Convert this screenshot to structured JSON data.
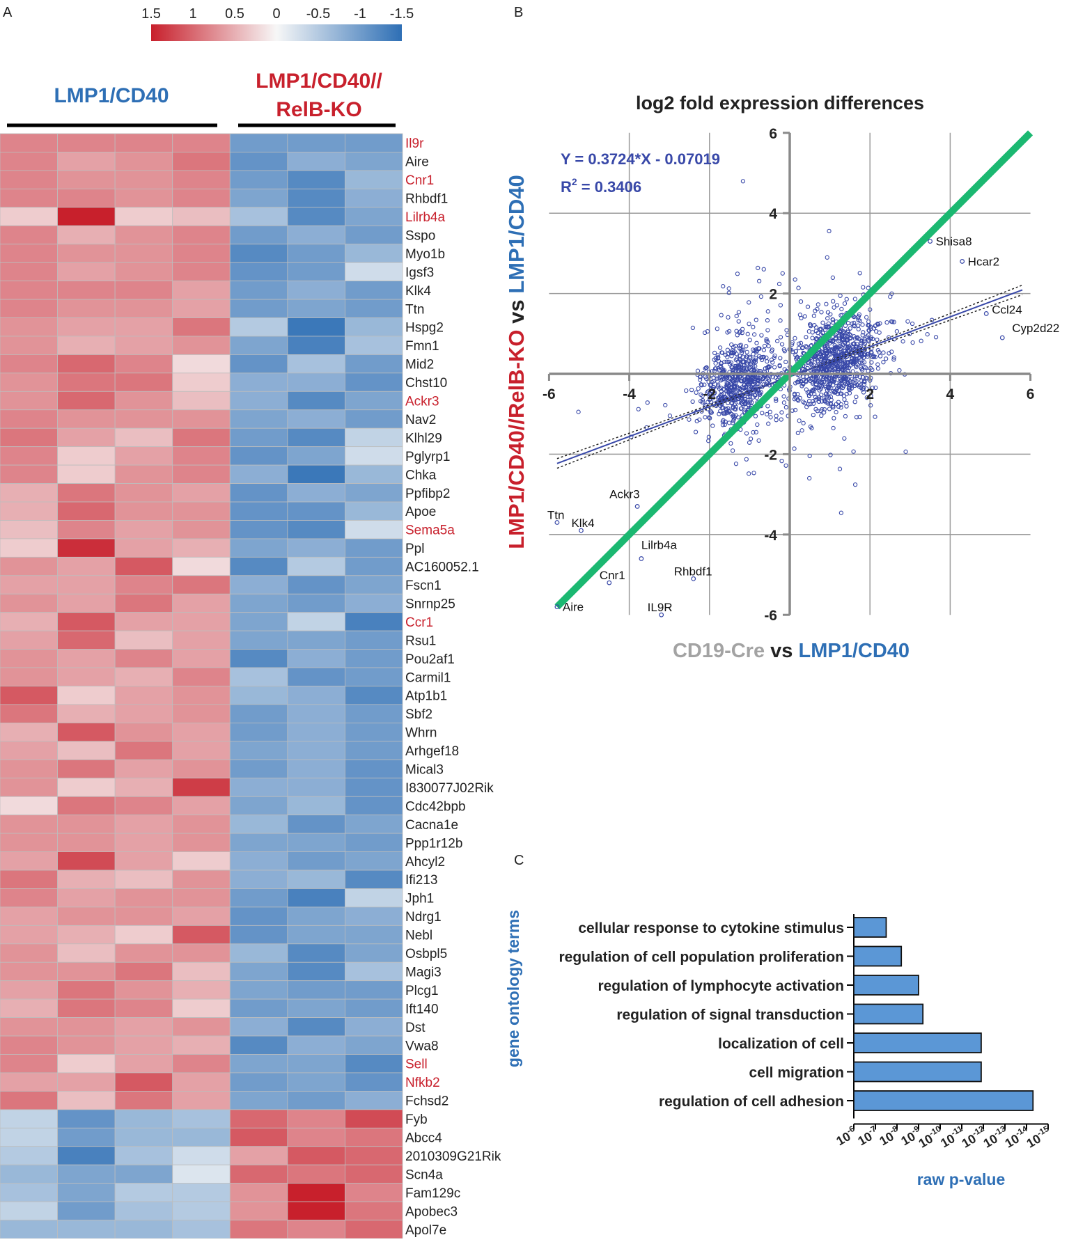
{
  "panel_labels": {
    "a": "A",
    "b": "B",
    "c": "C"
  },
  "colors": {
    "red": "#c8202c",
    "blue": "#2e6fb5",
    "green": "#1bb871",
    "navy": "#3848a8",
    "gray": "#a3a3a3",
    "bar_fill": "#5b97d6"
  },
  "icons": {
    "scatter_point": "open-circle",
    "heatmap_cell": "filled-rect"
  },
  "chart_data": [
    {
      "type": "heatmap",
      "title": "",
      "color_scale": {
        "stops": [
          1.5,
          1,
          0.5,
          0,
          -0.5,
          -1,
          -1.5
        ],
        "labels": [
          "1.5",
          "1",
          "0.5",
          "0",
          "-0.5",
          "-1",
          "-1.5"
        ],
        "high_color": "#c8202c",
        "mid_color": "#f7f7f7",
        "low_color": "#2e6fb5"
      },
      "groups": [
        {
          "label": "LMP1/CD40",
          "color": "#2e6fb5",
          "n_columns": 4
        },
        {
          "label_line1": "LMP1/CD40//",
          "label_line2": "RelB-KO",
          "color": "#c8202c",
          "n_columns": 3
        }
      ],
      "highlighted_genes": [
        "Il9r",
        "Cnr1",
        "Lilrb4a",
        "Ackr3",
        "Sema5a",
        "Ccr1",
        "Sell",
        "Nfkb2"
      ],
      "rows": [
        {
          "gene": "Il9r",
          "values": [
            0.8,
            0.8,
            0.8,
            0.8,
            -1.0,
            -1.0,
            -1.0
          ]
        },
        {
          "gene": "Aire",
          "values": [
            0.8,
            0.6,
            0.7,
            0.9,
            -1.1,
            -0.8,
            -0.9
          ]
        },
        {
          "gene": "Cnr1",
          "values": [
            0.8,
            0.7,
            0.7,
            0.8,
            -1.0,
            -1.2,
            -0.7
          ]
        },
        {
          "gene": "Rhbdf1",
          "values": [
            0.8,
            0.8,
            0.7,
            0.8,
            -0.9,
            -1.2,
            -0.8
          ]
        },
        {
          "gene": "Lilrb4a",
          "values": [
            0.3,
            1.5,
            0.3,
            0.4,
            -0.6,
            -1.2,
            -0.9
          ]
        },
        {
          "gene": "Sspo",
          "values": [
            0.8,
            0.5,
            0.7,
            0.8,
            -1.0,
            -0.8,
            -1.0
          ]
        },
        {
          "gene": "Myo1b",
          "values": [
            0.8,
            0.7,
            0.7,
            0.8,
            -1.2,
            -1.0,
            -0.7
          ]
        },
        {
          "gene": "Igsf3",
          "values": [
            0.8,
            0.6,
            0.7,
            0.8,
            -1.1,
            -1.0,
            -0.3
          ]
        },
        {
          "gene": "Klk4",
          "values": [
            0.8,
            0.8,
            0.8,
            0.6,
            -1.0,
            -0.8,
            -1.0
          ]
        },
        {
          "gene": "Ttn",
          "values": [
            0.8,
            0.7,
            0.7,
            0.6,
            -1.0,
            -0.9,
            -1.0
          ]
        },
        {
          "gene": "Hspg2",
          "values": [
            0.7,
            0.6,
            0.6,
            0.9,
            -0.5,
            -1.4,
            -0.7
          ]
        },
        {
          "gene": "Fmn1",
          "values": [
            0.7,
            0.5,
            0.6,
            0.7,
            -0.9,
            -1.3,
            -0.6
          ]
        },
        {
          "gene": "Mid2",
          "values": [
            0.8,
            1.0,
            0.8,
            0.2,
            -1.1,
            -0.6,
            -1.0
          ]
        },
        {
          "gene": "Chst10",
          "values": [
            0.7,
            0.9,
            0.9,
            0.3,
            -0.8,
            -0.8,
            -1.1
          ]
        },
        {
          "gene": "Ackr3",
          "values": [
            0.7,
            1.0,
            0.7,
            0.4,
            -0.8,
            -1.2,
            -0.9
          ]
        },
        {
          "gene": "Nav2",
          "values": [
            0.8,
            0.7,
            0.7,
            0.7,
            -0.9,
            -0.8,
            -1.0
          ]
        },
        {
          "gene": "Klhl29",
          "values": [
            0.9,
            0.6,
            0.4,
            0.9,
            -1.0,
            -1.2,
            -0.4
          ]
        },
        {
          "gene": "Pglyrp1",
          "values": [
            0.8,
            0.3,
            0.6,
            0.8,
            -1.1,
            -0.9,
            -0.3
          ]
        },
        {
          "gene": "Chka",
          "values": [
            0.8,
            0.3,
            0.7,
            0.8,
            -0.8,
            -1.4,
            -0.7
          ]
        },
        {
          "gene": "Ppfibp2",
          "values": [
            0.5,
            0.9,
            0.7,
            0.6,
            -1.1,
            -0.8,
            -0.9
          ]
        },
        {
          "gene": "Apoe",
          "values": [
            0.5,
            1.0,
            0.7,
            0.7,
            -1.1,
            -1.1,
            -0.7
          ]
        },
        {
          "gene": "Sema5a",
          "values": [
            0.4,
            0.8,
            0.6,
            0.7,
            -1.1,
            -1.2,
            -0.3
          ]
        },
        {
          "gene": "Ppl",
          "values": [
            0.3,
            1.4,
            0.6,
            0.5,
            -0.9,
            -0.8,
            -1.0
          ]
        },
        {
          "gene": "AC160052.1",
          "values": [
            0.7,
            0.6,
            1.1,
            0.2,
            -1.2,
            -0.5,
            -1.0
          ]
        },
        {
          "gene": "Fscn1",
          "values": [
            0.6,
            0.6,
            0.8,
            0.9,
            -0.8,
            -1.1,
            -0.9
          ]
        },
        {
          "gene": "Snrnp25",
          "values": [
            0.7,
            0.6,
            0.9,
            0.6,
            -0.9,
            -1.0,
            -0.8
          ]
        },
        {
          "gene": "Ccr1",
          "values": [
            0.5,
            1.1,
            0.6,
            0.6,
            -0.9,
            -0.4,
            -1.3
          ]
        },
        {
          "gene": "Rsu1",
          "values": [
            0.6,
            1.0,
            0.4,
            0.6,
            -0.9,
            -0.9,
            -1.0
          ]
        },
        {
          "gene": "Pou2af1",
          "values": [
            0.7,
            0.6,
            0.8,
            0.6,
            -1.2,
            -0.8,
            -1.0
          ]
        },
        {
          "gene": "Carmil1",
          "values": [
            0.7,
            0.6,
            0.5,
            0.8,
            -0.6,
            -1.1,
            -1.0
          ]
        },
        {
          "gene": "Atp1b1",
          "values": [
            1.1,
            0.3,
            0.6,
            0.7,
            -0.7,
            -0.8,
            -1.2
          ]
        },
        {
          "gene": "Sbf2",
          "values": [
            0.9,
            0.5,
            0.6,
            0.7,
            -1.0,
            -0.8,
            -1.0
          ]
        },
        {
          "gene": "Whrn",
          "values": [
            0.5,
            1.1,
            0.7,
            0.6,
            -1.0,
            -0.8,
            -1.0
          ]
        },
        {
          "gene": "Arhgef18",
          "values": [
            0.6,
            0.4,
            0.9,
            0.6,
            -0.9,
            -0.8,
            -1.0
          ]
        },
        {
          "gene": "Mical3",
          "values": [
            0.7,
            0.9,
            0.6,
            0.7,
            -1.0,
            -0.8,
            -1.1
          ]
        },
        {
          "gene": "I830077J02Rik",
          "values": [
            0.7,
            0.3,
            0.5,
            1.3,
            -0.8,
            -0.8,
            -1.1
          ]
        },
        {
          "gene": "Cdc42bpb",
          "values": [
            0.2,
            0.9,
            0.8,
            0.6,
            -0.9,
            -0.7,
            -1.1
          ]
        },
        {
          "gene": "Cacna1e",
          "values": [
            0.7,
            0.7,
            0.6,
            0.7,
            -0.7,
            -1.1,
            -0.9
          ]
        },
        {
          "gene": "Ppp1r12b",
          "values": [
            0.7,
            0.7,
            0.6,
            0.7,
            -0.9,
            -0.9,
            -1.0
          ]
        },
        {
          "gene": "Ahcyl2",
          "values": [
            0.6,
            1.2,
            0.6,
            0.3,
            -0.8,
            -1.0,
            -0.9
          ]
        },
        {
          "gene": "Ifi213",
          "values": [
            0.9,
            0.5,
            0.4,
            0.7,
            -0.8,
            -0.7,
            -1.2
          ]
        },
        {
          "gene": "Jph1",
          "values": [
            0.8,
            0.6,
            0.7,
            0.7,
            -1.0,
            -1.3,
            -0.4
          ]
        },
        {
          "gene": "Ndrg1",
          "values": [
            0.6,
            0.7,
            0.7,
            0.6,
            -1.1,
            -0.9,
            -0.8
          ]
        },
        {
          "gene": "Nebl",
          "values": [
            0.6,
            0.5,
            0.3,
            1.1,
            -1.1,
            -0.9,
            -0.9
          ]
        },
        {
          "gene": "Osbpl5",
          "values": [
            0.7,
            0.4,
            0.7,
            0.7,
            -0.7,
            -1.2,
            -0.9
          ]
        },
        {
          "gene": "Magi3",
          "values": [
            0.7,
            0.7,
            0.9,
            0.4,
            -0.9,
            -1.2,
            -0.6
          ]
        },
        {
          "gene": "Plcg1",
          "values": [
            0.6,
            0.9,
            0.7,
            0.5,
            -0.9,
            -1.0,
            -1.0
          ]
        },
        {
          "gene": "Ift140",
          "values": [
            0.5,
            0.9,
            0.8,
            0.3,
            -1.0,
            -0.9,
            -1.0
          ]
        },
        {
          "gene": "Dst",
          "values": [
            0.7,
            0.7,
            0.6,
            0.7,
            -0.8,
            -1.2,
            -0.8
          ]
        },
        {
          "gene": "Vwa8",
          "values": [
            0.8,
            0.7,
            0.6,
            0.5,
            -1.2,
            -0.8,
            -0.9
          ]
        },
        {
          "gene": "Sell",
          "values": [
            0.8,
            0.3,
            0.6,
            0.8,
            -0.9,
            -0.9,
            -1.2
          ]
        },
        {
          "gene": "Nfkb2",
          "values": [
            0.6,
            0.6,
            1.1,
            0.6,
            -1.0,
            -0.9,
            -1.1
          ]
        },
        {
          "gene": "Fchsd2",
          "values": [
            0.9,
            0.4,
            0.9,
            0.6,
            -0.9,
            -1.0,
            -0.8
          ]
        },
        {
          "gene": "Fyb",
          "values": [
            -0.4,
            -1.1,
            -0.7,
            -0.6,
            1.0,
            0.8,
            1.2
          ]
        },
        {
          "gene": "Abcc4",
          "values": [
            -0.4,
            -1.0,
            -0.7,
            -0.7,
            1.1,
            0.8,
            0.9
          ]
        },
        {
          "gene": "2010309G21Rik",
          "values": [
            -0.5,
            -1.3,
            -0.6,
            -0.3,
            0.6,
            1.1,
            1.0
          ]
        },
        {
          "gene": "Scn4a",
          "values": [
            -0.7,
            -0.9,
            -0.9,
            -0.2,
            1.0,
            0.9,
            1.0
          ]
        },
        {
          "gene": "Fam129c",
          "values": [
            -0.6,
            -0.9,
            -0.5,
            -0.5,
            0.7,
            1.5,
            0.8
          ]
        },
        {
          "gene": "Apobec3",
          "values": [
            -0.4,
            -1.0,
            -0.6,
            -0.5,
            0.7,
            1.6,
            0.9
          ]
        },
        {
          "gene": "Apol7e",
          "values": [
            -0.7,
            -0.7,
            -0.7,
            -0.6,
            0.9,
            0.8,
            1.0
          ]
        }
      ]
    },
    {
      "type": "scatter",
      "title": "log2 fold expression differences",
      "xlabel_part1": "CD19-Cre",
      "xlabel_vs": "vs",
      "xlabel_part2": "LMP1/CD40",
      "ylabel_part1": "LMP1/CD40//RelB-KO",
      "ylabel_vs": "vs",
      "ylabel_part2": "LMP1/CD40",
      "xlim": [
        -6,
        6
      ],
      "ylim": [
        -6,
        6
      ],
      "xticks": [
        -6,
        -4,
        -2,
        2,
        4,
        6
      ],
      "yticks": [
        6,
        4,
        2,
        -2,
        -4,
        -6
      ],
      "grid": true,
      "regression": {
        "equation": "Y = 0.3724*X - 0.07019",
        "r2_prefix": "R",
        "r2_exp": "2",
        "r2_value": " = 0.3406",
        "slope": 0.3724,
        "intercept": -0.07019
      },
      "identity_line": {
        "slope": 1,
        "intercept": 0
      },
      "cluster_approx": [
        {
          "center_x": -1.3,
          "center_y": -0.2,
          "spread_x": 0.45,
          "spread_y": 0.5,
          "count": 650
        },
        {
          "center_x": 1.1,
          "center_y": 0.3,
          "spread_x": 0.55,
          "spread_y": 0.55,
          "count": 900
        }
      ],
      "labeled_points": [
        {
          "label": "Shisa8",
          "x": 3.5,
          "y": 3.3
        },
        {
          "label": "Hcar2",
          "x": 4.3,
          "y": 2.8
        },
        {
          "label": "Ccl24",
          "x": 4.9,
          "y": 1.5
        },
        {
          "label": "Cyp2d22",
          "x": 5.3,
          "y": 0.9
        },
        {
          "label": "Ackr3",
          "x": -3.8,
          "y": -3.3
        },
        {
          "label": "Ttn",
          "x": -5.8,
          "y": -3.7
        },
        {
          "label": "Klk4",
          "x": -5.2,
          "y": -3.9
        },
        {
          "label": "Lilrb4a",
          "x": -3.7,
          "y": -4.6
        },
        {
          "label": "Rhbdf1",
          "x": -2.4,
          "y": -5.1
        },
        {
          "label": "Cnr1",
          "x": -4.5,
          "y": -5.2
        },
        {
          "label": "Aire",
          "x": -5.8,
          "y": -5.8
        },
        {
          "label": "IL9R",
          "x": -3.2,
          "y": -6.0
        }
      ]
    },
    {
      "type": "bar",
      "orientation": "horizontal",
      "title": "",
      "ylabel": "gene ontology terms",
      "xlabel": "raw p-value",
      "categories": [
        "cellular response to cytokine stimulus",
        "regulation of cell population proliferation",
        "regulation of lymphocyte activation",
        "regulation of signal transduction",
        "localization of cell",
        "cell migration",
        "regulation of cell adhesion"
      ],
      "values": [
        7.5,
        8.2,
        9.0,
        9.2,
        11.9,
        11.9,
        14.3
      ],
      "value_meaning": "-log10(raw p-value)",
      "xlim": [
        6,
        15
      ],
      "tick_exponents": [
        "-6",
        "-7",
        "-8",
        "-9",
        "-10",
        "-11",
        "-12",
        "-13",
        "-14",
        "-15"
      ],
      "tick_base": "10"
    }
  ]
}
